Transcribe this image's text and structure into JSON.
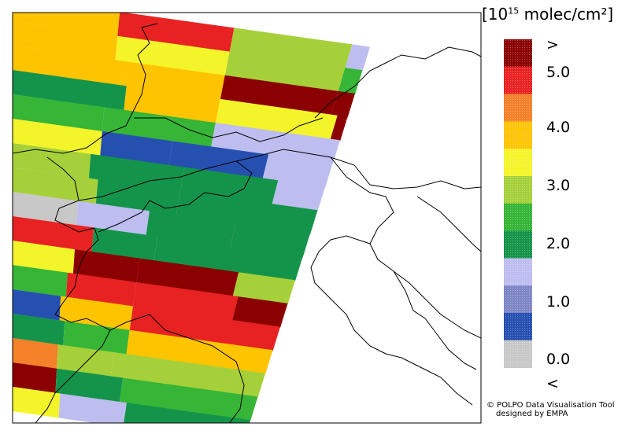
{
  "legend": {
    "unit_prefix": "[10",
    "unit_exp": "15",
    "unit_suffix": " molec/cm²]",
    "labels": [
      ">",
      "5.0",
      "4.0",
      "3.0",
      "2.0",
      "1.0",
      "0.0",
      "<"
    ],
    "colors": [
      "#8b0000",
      "#e82222",
      "#f4802a",
      "#ffc400",
      "#f4f42a",
      "#a6d03a",
      "#36b536",
      "#14944a",
      "#bdbdf0",
      "#7f86c6",
      "#2650b0",
      "#c8c8c8"
    ]
  },
  "credit": {
    "line1": "© POLPO Data Visualisation Tool",
    "line2": "designed by EMPA"
  }
}
